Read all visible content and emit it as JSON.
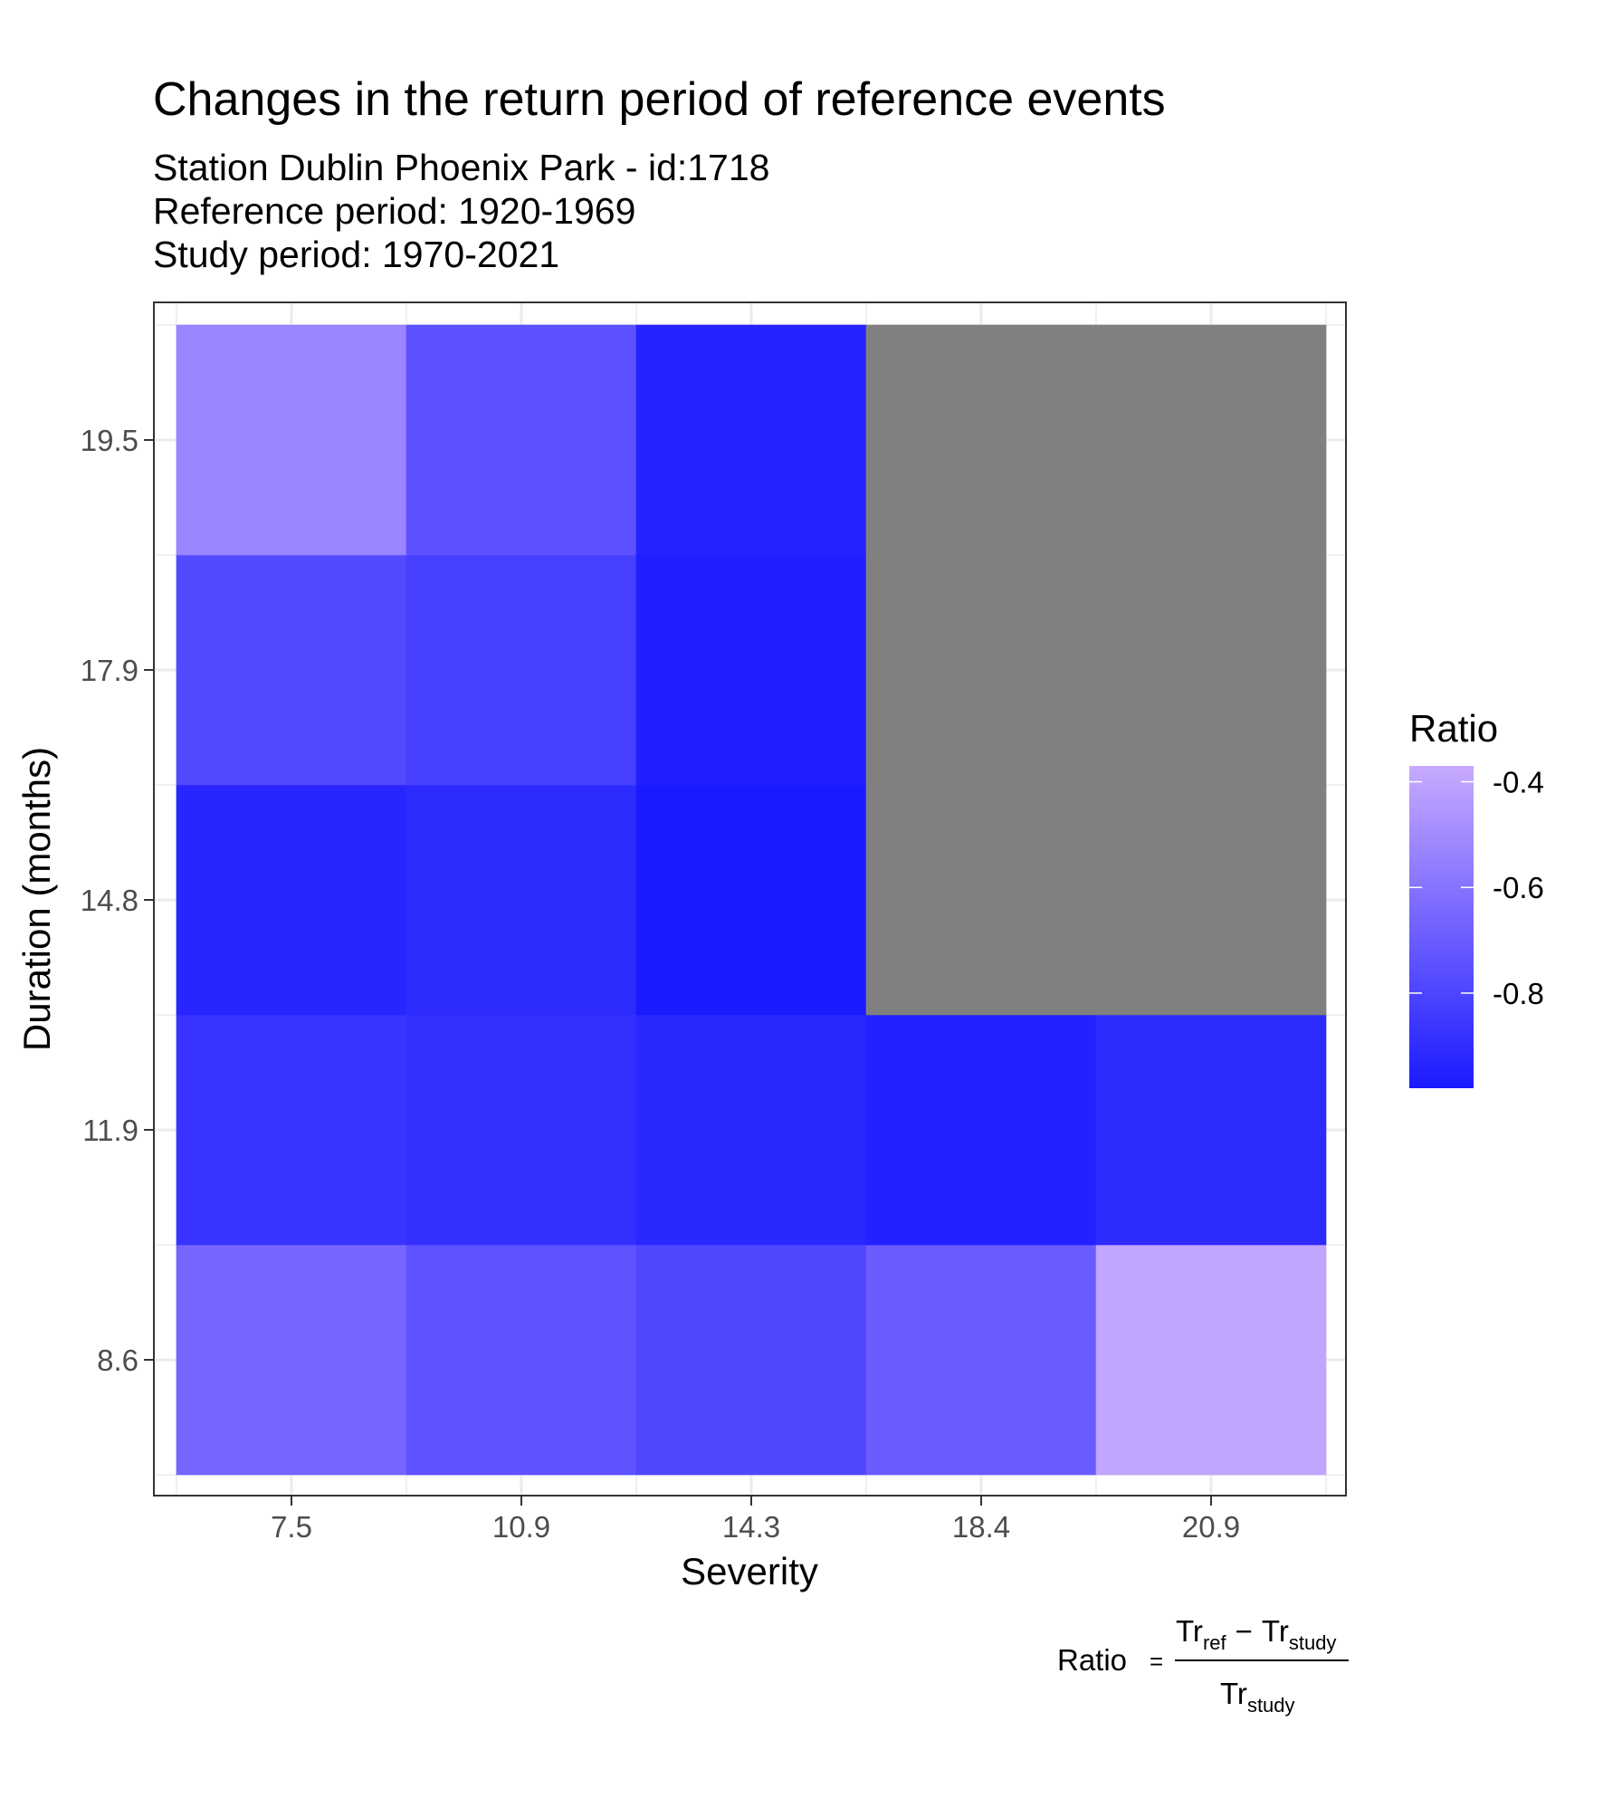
{
  "title": "Changes in the return period of reference events",
  "subtitle_lines": [
    "Station Dublin Phoenix Park - id:1718",
    "Reference period: 1920-1969",
    "Study period: 1970-2021"
  ],
  "formula": {
    "lhs": "Ratio",
    "equals": "=",
    "num_a": "Tr",
    "num_a_sub": "ref",
    "minus": "−",
    "num_b": "Tr",
    "num_b_sub": "study",
    "den": "Tr",
    "den_sub": "study"
  },
  "colors": {
    "low": "#1a1aff",
    "high": "#c8aaff",
    "na": "#808080",
    "grid": "#ebebeb",
    "panel_border": "#333333"
  },
  "chart_data": {
    "type": "heatmap",
    "xlabel": "Severity",
    "ylabel": "Duration (months)",
    "x_categories": [
      "7.5",
      "10.9",
      "14.3",
      "18.4",
      "20.9"
    ],
    "y_categories": [
      "8.6",
      "11.9",
      "14.8",
      "17.9",
      "19.5"
    ],
    "legend_title": "Ratio",
    "legend_breaks": [
      "-0.4",
      "-0.6",
      "-0.8"
    ],
    "color_range": [
      -0.98,
      -0.37
    ],
    "na_color": "#808080",
    "values": [
      [
        -0.66,
        -0.74,
        -0.79,
        -0.7,
        -0.39
      ],
      [
        -0.87,
        -0.89,
        -0.92,
        -0.95,
        -0.91
      ],
      [
        -0.93,
        -0.91,
        -0.98,
        null,
        null
      ],
      [
        -0.78,
        -0.82,
        -0.96,
        null,
        null
      ],
      [
        -0.53,
        -0.75,
        -0.94,
        null,
        null
      ]
    ]
  }
}
